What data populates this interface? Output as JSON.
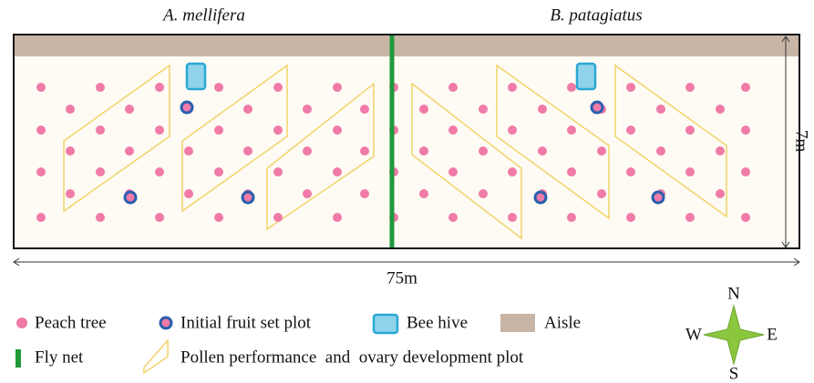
{
  "sections": {
    "left": "A. mellifera",
    "right": "B. patagiatus"
  },
  "dimensions": {
    "height": "7m",
    "width": "75m"
  },
  "legend": {
    "peach_tree": "Peach tree",
    "fruit_set": "Initial fruit set plot",
    "hive": "Bee hive",
    "aisle": "Aisle",
    "fly_net": "Fly net",
    "pollen_plot": "Pollen performance  and  ovary development plot"
  },
  "compass": {
    "n": "N",
    "e": "E",
    "s": "S",
    "w": "W"
  }
}
